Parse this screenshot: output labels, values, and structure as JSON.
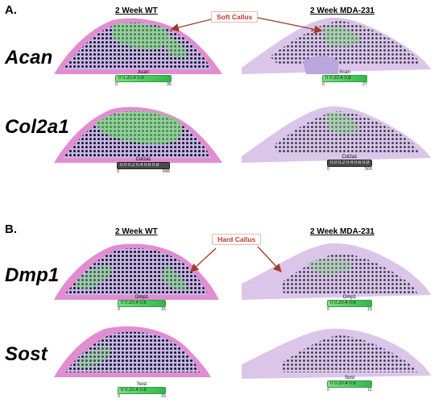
{
  "panels": {
    "a": {
      "letter": "A."
    },
    "b": {
      "letter": "B."
    }
  },
  "column_headers": {
    "a_wt": "2 Week WT",
    "a_mda": "2 Week MDA-231",
    "b_wt": "2 Week WT",
    "b_mda": "2 Week MDA-231"
  },
  "annotations": {
    "soft_callus": "Soft Callus",
    "hard_callus": "Hard Callus"
  },
  "genes": [
    "Acan",
    "Col2a1",
    "Dmp1",
    "Sost"
  ],
  "scale_bars": {
    "acan_wt": {
      "label": "Acan",
      "min": "0",
      "max": "36",
      "inner": "0  0.20.4 0.6"
    },
    "acan_mda": {
      "label": "Acan",
      "min": "0",
      "max": "27",
      "inner": "0  0.20.4 0.6"
    },
    "col_wt": {
      "label": "Col2a1",
      "min": "0",
      "max": "848",
      "inner": "0.0 0.2 0.4 0.6 0.8"
    },
    "col_mda": {
      "label": "Col2a1",
      "min": "0",
      "max": "560",
      "inner": "0.0 0.2 0.4 0.6 0.8"
    },
    "dmp1_wt": {
      "label": "Dmp1",
      "min": "0",
      "max": "16",
      "inner": "0  0.20.4 0.6"
    },
    "dmp1_mda": {
      "label": "Dmp1",
      "min": "0",
      "max": "19",
      "inner": "0  0.20.4 0.6"
    },
    "sost_wt": {
      "label": "Sost",
      "min": "0",
      "max": "15",
      "inner": "0  0.20.4 0.6"
    },
    "sost_mda": {
      "label": "Sost",
      "min": "0",
      "max": "11",
      "inner": "0  0.20.4 0.6"
    }
  },
  "colors": {
    "tissue_pink": "#e58fd6",
    "tissue_lavender": "#c7b6e6",
    "green_signal": "#6fe06a",
    "spot_black": "#1a1a2a",
    "arrow_red": "#a33a2a"
  }
}
